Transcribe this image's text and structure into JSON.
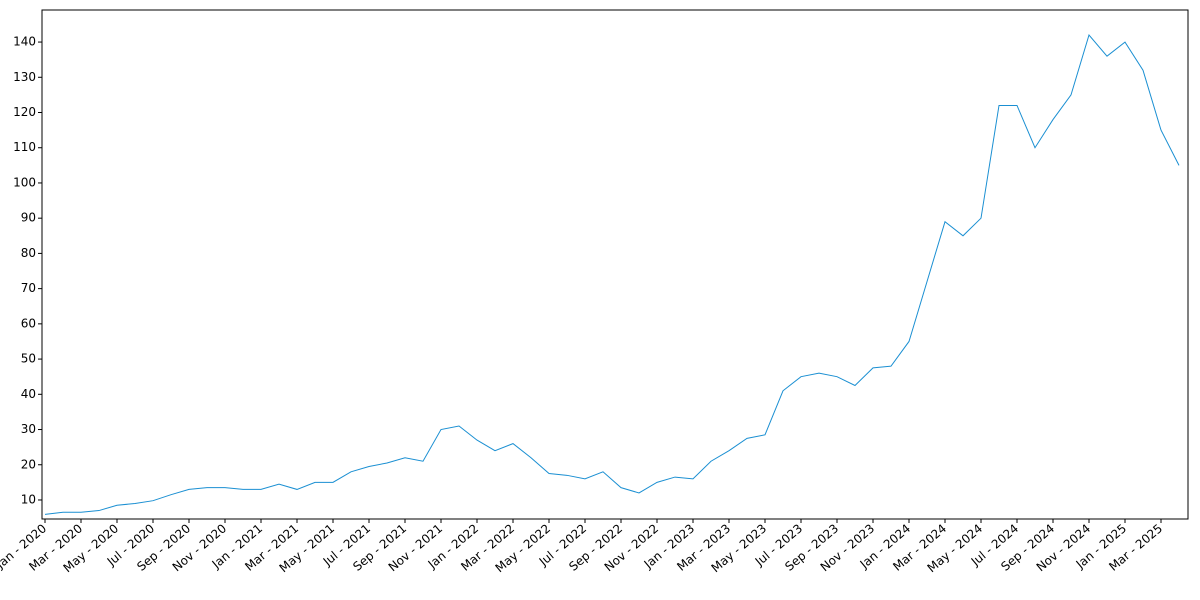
{
  "chart_data": {
    "type": "line",
    "categories": [
      "Jan - 2020",
      null,
      "Mar - 2020",
      null,
      "May - 2020",
      null,
      "Jul - 2020",
      null,
      "Sep - 2020",
      null,
      "Nov - 2020",
      null,
      "Jan - 2021",
      null,
      "Mar - 2021",
      null,
      "May - 2021",
      null,
      "Jul - 2021",
      null,
      "Sep - 2021",
      null,
      "Nov - 2021",
      null,
      "Jan - 2022",
      null,
      "Mar - 2022",
      null,
      "May - 2022",
      null,
      "Jul - 2022",
      null,
      "Sep - 2022",
      null,
      "Nov - 2022",
      null,
      "Jan - 2023",
      null,
      "Mar - 2023",
      null,
      "May - 2023",
      null,
      "Jul - 2023",
      null,
      "Sep - 2023",
      null,
      "Nov - 2023",
      null,
      "Jan - 2024",
      null,
      "Mar - 2024",
      null,
      "May - 2024",
      null,
      "Jul - 2024",
      null,
      "Sep - 2024",
      null,
      "Nov - 2024",
      null,
      "Jan - 2025",
      null,
      "Mar - 2025",
      null
    ],
    "values": [
      5.9,
      6.5,
      6.5,
      7.0,
      8.5,
      9.0,
      9.8,
      11.5,
      13.0,
      13.5,
      13.5,
      13.0,
      13.0,
      14.5,
      13.0,
      15.0,
      15.0,
      18.0,
      19.5,
      20.5,
      22.0,
      21.0,
      30.0,
      31.0,
      27.0,
      24.0,
      26.0,
      22.0,
      17.5,
      17.0,
      16.0,
      18.0,
      13.5,
      12.0,
      15.0,
      16.5,
      16.0,
      21.0,
      24.0,
      27.5,
      28.5,
      41.0,
      45.0,
      46.0,
      45.0,
      42.5,
      47.5,
      48.0,
      55.0,
      72.0,
      89.0,
      85.0,
      90.0,
      122.0,
      122.0,
      110.0,
      118.0,
      125.0,
      142.0,
      136.0,
      140.0,
      132.0,
      115.0,
      105.0
    ],
    "color": "#1a8fd2",
    "ylim": [
      4.6,
      149.1
    ],
    "yticks": [
      10,
      20,
      30,
      40,
      50,
      60,
      70,
      80,
      90,
      100,
      110,
      120,
      130,
      140
    ]
  }
}
